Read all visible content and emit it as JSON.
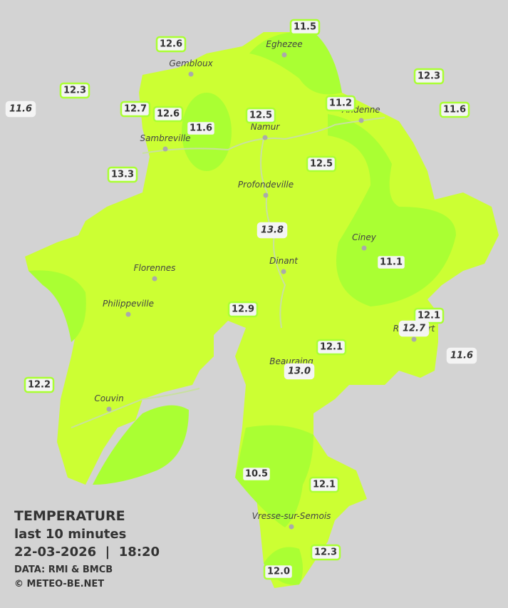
{
  "legend": {
    "title": "TEMPERATURE",
    "subtitle": "last 10 minutes",
    "datetime": "22-03-2026  |  18:20",
    "source": "DATA: RMI & BMCB",
    "credit": "© METEO-BE.NET"
  },
  "towns": [
    "Gembloux",
    "Eghezee",
    "Andenne",
    "Namur",
    "Sambreville",
    "Profondeville",
    "Ciney",
    "Dinant",
    "Florennes",
    "Philippeville",
    "Beauraing",
    "Rochefort",
    "Couvin",
    "Vresse-sur-Semois"
  ],
  "readings": [
    {
      "label": "12.6"
    },
    {
      "label": "11.5"
    },
    {
      "label": "12.3"
    },
    {
      "label": "11.6",
      "italic": true
    },
    {
      "label": "12.7"
    },
    {
      "label": "12.6"
    },
    {
      "label": "11.6"
    },
    {
      "label": "12.5"
    },
    {
      "label": "11.2"
    },
    {
      "label": "12.3"
    },
    {
      "label": "11.6"
    },
    {
      "label": "13.3"
    },
    {
      "label": "12.5"
    },
    {
      "label": "13.8",
      "italic": true
    },
    {
      "label": "11.1"
    },
    {
      "label": "12.9"
    },
    {
      "label": "12.1"
    },
    {
      "label": "12.7",
      "italic": true
    },
    {
      "label": "12.1"
    },
    {
      "label": "11.6",
      "italic": true
    },
    {
      "label": "13.0",
      "italic": true
    },
    {
      "label": "12.2"
    },
    {
      "label": "10.5"
    },
    {
      "label": "12.1"
    },
    {
      "label": "12.3"
    },
    {
      "label": "12.0"
    }
  ]
}
